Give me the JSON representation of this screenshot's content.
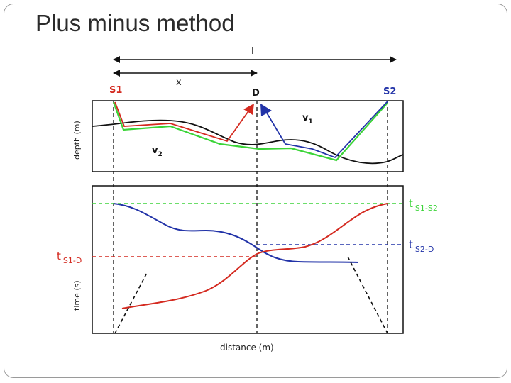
{
  "slide": {
    "title": "Plus minus method"
  },
  "diagram": {
    "labels": {
      "l": "l",
      "x": "x",
      "s1": "S1",
      "d": "D",
      "s2": "S2",
      "v1_base": "v",
      "v1_sub": "1",
      "v2_base": "v",
      "v2_sub": "2",
      "depth_axis": "depth (m)",
      "time_axis": "time (s)",
      "distance_axis": "distance (m)",
      "t_s1s2_base": "t",
      "t_s1s2_sub": "S1-S2",
      "t_s2d_base": "t",
      "t_s2d_sub": "S2-D",
      "t_s1d_base": "t",
      "t_s1d_sub": "S1-D"
    },
    "colors": {
      "red": "#d42a20",
      "blue": "#2233a8",
      "green": "#3bd438",
      "black": "#111111",
      "s_label": "#d42a20",
      "s2_label": "#2233a8"
    }
  }
}
